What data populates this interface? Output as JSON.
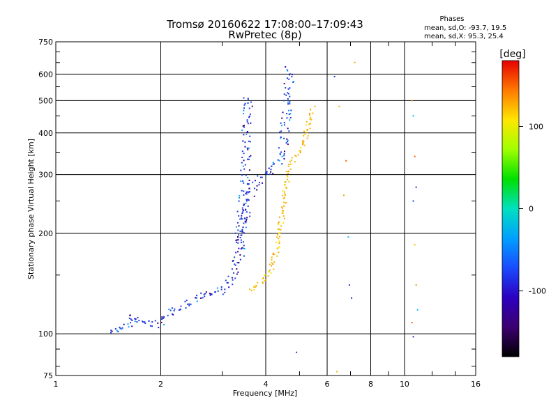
{
  "chart_data": {
    "type": "scatter",
    "title": "Tromsø 20160622 17:08:00–17:09:43",
    "subtitle": "RwPretec (8p)",
    "xlabel": "Frequency [MHz]",
    "ylabel": "Stationary phase Virtual Height [km]",
    "xscale": "log",
    "yscale": "log",
    "xlim": [
      1,
      16
    ],
    "ylim": [
      75,
      750
    ],
    "grid": true,
    "xticks": [
      1,
      2,
      4,
      6,
      8,
      10,
      16
    ],
    "xtick_labels": [
      "1",
      "2",
      "4",
      "6",
      "8",
      "10",
      "16"
    ],
    "yticks": [
      75,
      100,
      200,
      300,
      400,
      500,
      600,
      750
    ],
    "ytick_labels": [
      "75",
      "100",
      "200",
      "300",
      "400",
      "500",
      "600",
      "750"
    ],
    "phases": {
      "title": "Phases",
      "lines": [
        "mean, sd,O: -93.7, 19.5",
        "mean, sd,X:  95.3, 25.4"
      ]
    },
    "colorbar": {
      "label": "[deg]",
      "range": [
        -180,
        180
      ],
      "ticks": [
        100,
        0,
        -100
      ],
      "tick_labels": [
        "100",
        "0",
        "-100"
      ]
    },
    "traces": [
      {
        "name": "O-trace-low",
        "mode": "O",
        "points": [
          [
            1.45,
            102
          ],
          [
            1.6,
            104
          ],
          [
            1.62,
            112
          ],
          [
            1.95,
            106
          ],
          [
            2.05,
            110
          ],
          [
            2.2,
            118
          ],
          [
            2.4,
            124
          ],
          [
            2.6,
            130
          ],
          [
            2.9,
            132
          ],
          [
            3.1,
            140
          ],
          [
            3.25,
            152
          ],
          [
            3.35,
            170
          ],
          [
            3.4,
            190
          ],
          [
            3.45,
            210
          ],
          [
            3.5,
            230
          ],
          [
            3.6,
            255
          ],
          [
            3.7,
            275
          ],
          [
            3.85,
            295
          ],
          [
            4.05,
            305
          ],
          [
            4.25,
            315
          ],
          [
            4.4,
            335
          ],
          [
            4.5,
            370
          ],
          [
            4.55,
            410
          ],
          [
            4.6,
            470
          ],
          [
            4.65,
            540
          ],
          [
            4.7,
            630
          ]
        ]
      },
      {
        "name": "O-trace-cusp",
        "mode": "O",
        "points": [
          [
            3.35,
            180
          ],
          [
            3.4,
            210
          ],
          [
            3.45,
            250
          ],
          [
            3.5,
            300
          ],
          [
            3.52,
            380
          ],
          [
            3.55,
            450
          ],
          [
            3.57,
            520
          ]
        ]
      },
      {
        "name": "X-trace",
        "mode": "X",
        "points": [
          [
            3.6,
            135
          ],
          [
            3.8,
            140
          ],
          [
            4.0,
            148
          ],
          [
            4.15,
            155
          ],
          [
            4.3,
            180
          ],
          [
            4.4,
            210
          ],
          [
            4.5,
            230
          ],
          [
            4.55,
            280
          ],
          [
            4.7,
            320
          ],
          [
            4.9,
            340
          ],
          [
            5.05,
            360
          ],
          [
            5.2,
            380
          ],
          [
            5.3,
            430
          ],
          [
            5.5,
            480
          ]
        ]
      },
      {
        "name": "Scatter-high",
        "mode": "mixed",
        "points": [
          [
            6.3,
            590
          ],
          [
            6.5,
            480
          ],
          [
            6.7,
            260
          ],
          [
            6.9,
            195
          ],
          [
            6.8,
            330
          ],
          [
            6.95,
            140
          ],
          [
            7.05,
            128
          ],
          [
            7.2,
            650
          ],
          [
            10.5,
            500
          ],
          [
            10.6,
            450
          ],
          [
            10.7,
            340
          ],
          [
            10.8,
            275
          ],
          [
            10.6,
            250
          ],
          [
            10.7,
            185
          ],
          [
            10.8,
            140
          ],
          [
            10.9,
            118
          ],
          [
            10.5,
            108
          ],
          [
            10.6,
            98
          ],
          [
            4.9,
            88
          ],
          [
            6.4,
            77
          ]
        ]
      }
    ],
    "colors": {
      "O": "#1a3de0",
      "X": "#f2b600",
      "colorbar_stops": [
        "#e60000",
        "#ff7a00",
        "#ffe600",
        "#a0ff00",
        "#00e000",
        "#00e0c0",
        "#00a0ff",
        "#1a4bff",
        "#2c00c0",
        "#3c0070",
        "#000000"
      ]
    }
  }
}
